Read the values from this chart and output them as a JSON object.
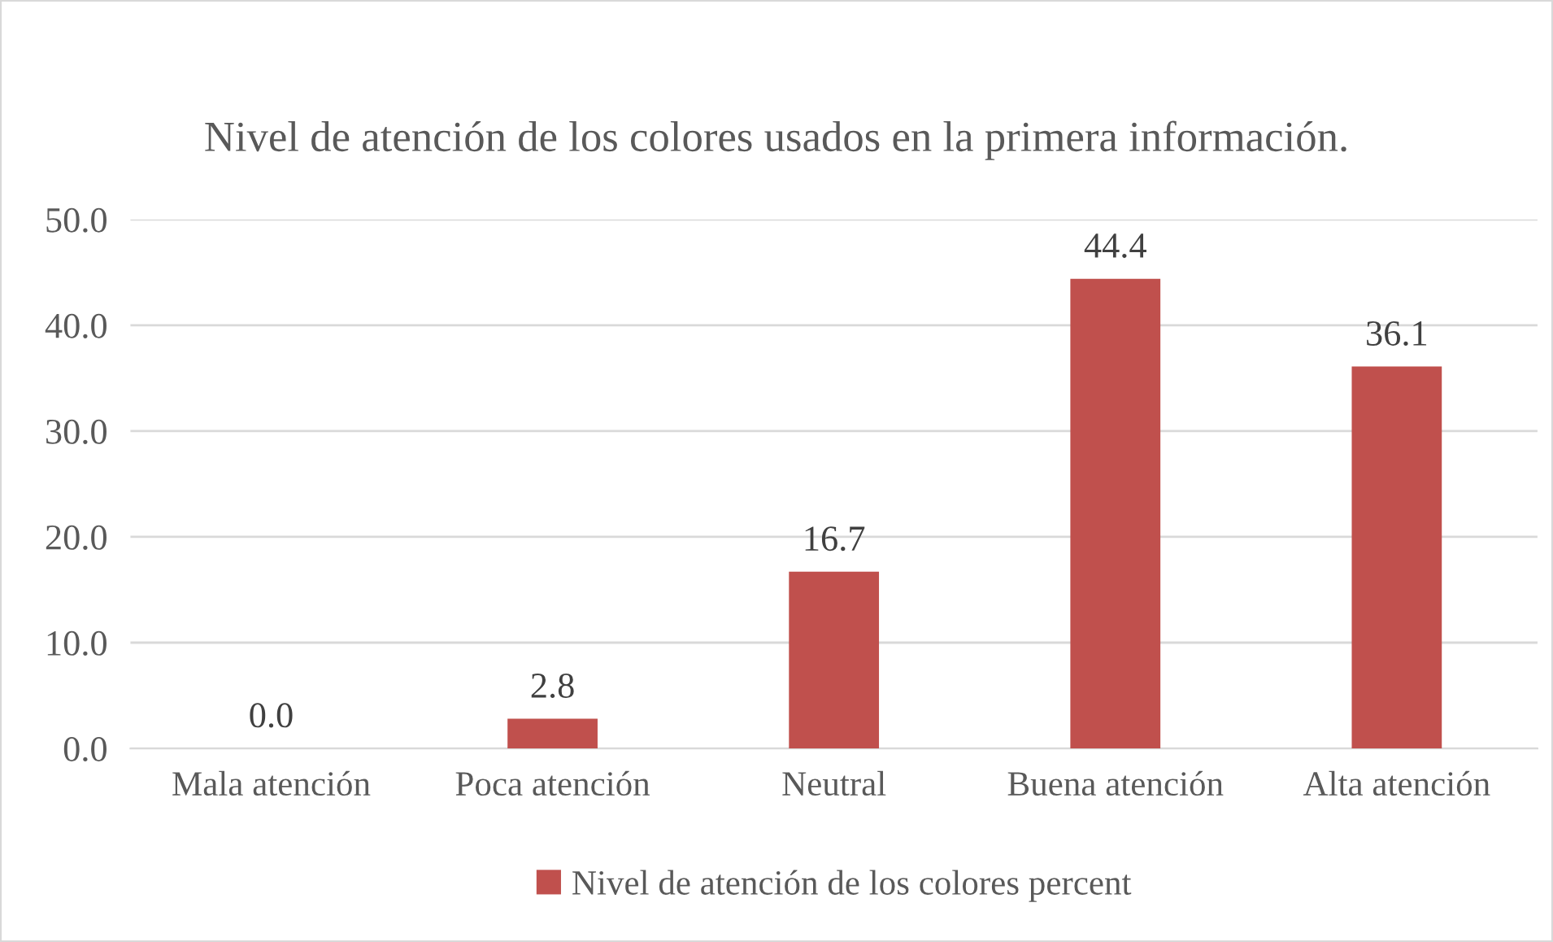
{
  "chart_data": {
    "type": "bar",
    "title": "Nivel de atención de los colores usados en la primera información.",
    "categories": [
      "Mala atención",
      "Poca atención",
      "Neutral",
      "Buena atención",
      "Alta atención"
    ],
    "series": [
      {
        "name": "Nivel de atención de los colores percent",
        "color": "#c0504d",
        "values": [
          0.0,
          2.8,
          16.7,
          44.4,
          36.1
        ],
        "value_labels": [
          "0.0",
          "2.8",
          "16.7",
          "44.4",
          "36.1"
        ]
      }
    ],
    "ylim": [
      0,
      50
    ],
    "yticks": [
      {
        "value": 0,
        "label": "0.0"
      },
      {
        "value": 10,
        "label": "10.0"
      },
      {
        "value": 20,
        "label": "20.0"
      },
      {
        "value": 30,
        "label": "30.0"
      },
      {
        "value": 40,
        "label": "40.0"
      },
      {
        "value": 50,
        "label": "50.0"
      }
    ],
    "grid": "y",
    "legend": "bottom"
  }
}
